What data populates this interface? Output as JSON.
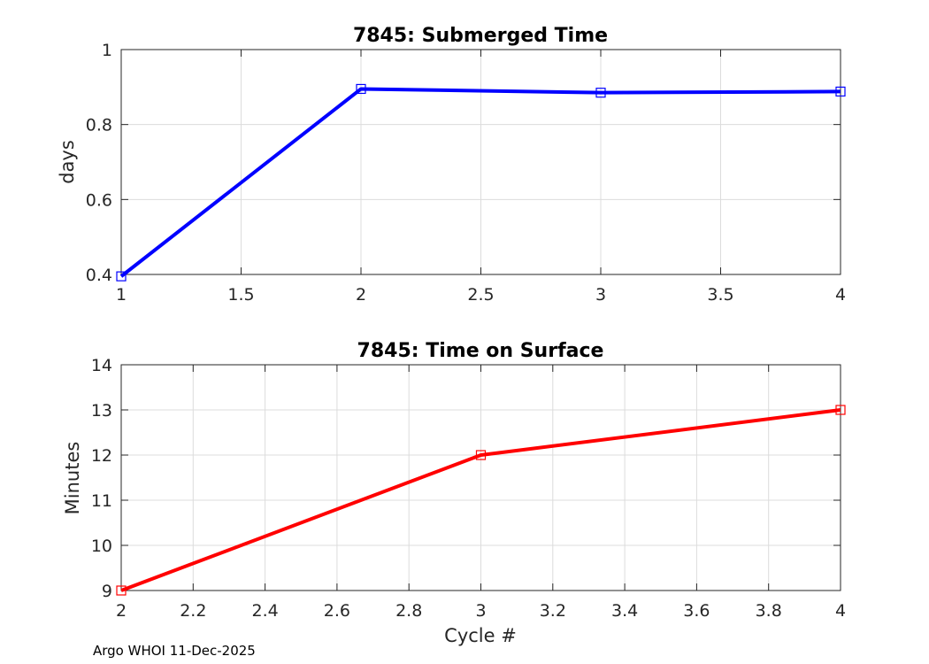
{
  "footer": "Argo WHOI 11-Dec-2025",
  "chart_data": [
    {
      "type": "line",
      "title": "7845: Submerged Time",
      "xlabel": "",
      "ylabel": "days",
      "xlim": [
        1,
        4
      ],
      "ylim": [
        0.4,
        1
      ],
      "xticks": [
        "1",
        "1.5",
        "2",
        "2.5",
        "3",
        "3.5",
        "4"
      ],
      "xtick_values": [
        1,
        1.5,
        2,
        2.5,
        3,
        3.5,
        4
      ],
      "yticks": [
        "0.4",
        "0.6",
        "0.8",
        "1"
      ],
      "ytick_values": [
        0.4,
        0.6,
        0.8,
        1
      ],
      "grid": true,
      "color": "#0000ff",
      "marker": "square",
      "x": [
        1,
        2,
        3,
        4
      ],
      "y": [
        0.395,
        0.895,
        0.885,
        0.888
      ]
    },
    {
      "type": "line",
      "title": "7845: Time on Surface",
      "xlabel": "Cycle #",
      "ylabel": "Minutes",
      "xlim": [
        2,
        4
      ],
      "ylim": [
        9,
        14
      ],
      "xticks": [
        "2",
        "2.2",
        "2.4",
        "2.6",
        "2.8",
        "3",
        "3.2",
        "3.4",
        "3.6",
        "3.8",
        "4"
      ],
      "xtick_values": [
        2,
        2.2,
        2.4,
        2.6,
        2.8,
        3,
        3.2,
        3.4,
        3.6,
        3.8,
        4
      ],
      "yticks": [
        "9",
        "10",
        "11",
        "12",
        "13",
        "14"
      ],
      "ytick_values": [
        9,
        10,
        11,
        12,
        13,
        14
      ],
      "grid": true,
      "color": "#ff0000",
      "marker": "square",
      "x": [
        2,
        3,
        4
      ],
      "y": [
        9,
        12,
        13
      ]
    }
  ]
}
